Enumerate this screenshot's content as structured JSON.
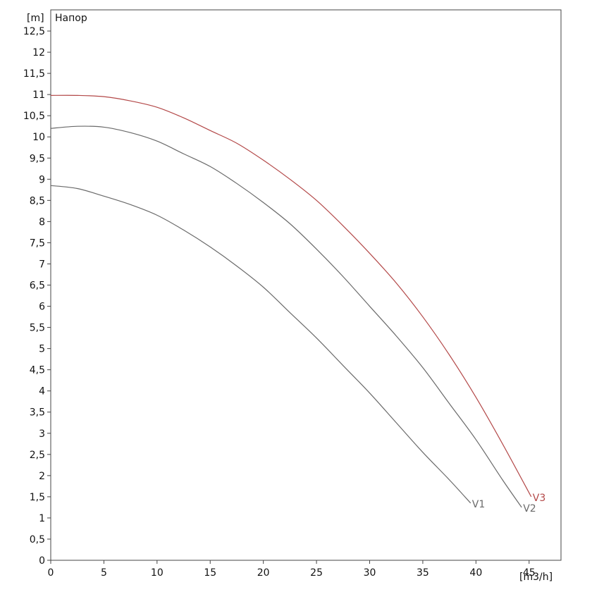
{
  "chart_data": {
    "type": "line",
    "title": "Напор",
    "xlabel": "[m3/h]",
    "ylabel": "[m]",
    "xlim": [
      0,
      48
    ],
    "ylim": [
      0,
      13
    ],
    "grid": true,
    "x_ticks": [
      0,
      5,
      10,
      15,
      20,
      25,
      30,
      35,
      40,
      45
    ],
    "x_tick_labels": [
      "0",
      "5",
      "10",
      "15",
      "20",
      "25",
      "30",
      "35",
      "40",
      "45"
    ],
    "y_ticks": [
      0,
      0.5,
      1,
      1.5,
      2,
      2.5,
      3,
      3.5,
      4,
      4.5,
      5,
      5.5,
      6,
      6.5,
      7,
      7.5,
      8,
      8.5,
      9,
      9.5,
      10,
      10.5,
      11,
      11.5,
      12,
      12.5
    ],
    "y_tick_labels": [
      "0",
      "0,5",
      "1",
      "1,5",
      "2",
      "2,5",
      "3",
      "3,5",
      "4",
      "4,5",
      "5",
      "5,5",
      "6",
      "6,5",
      "7",
      "7,5",
      "8",
      "8,5",
      "9",
      "9,5",
      "10",
      "10,5",
      "11",
      "11,5",
      "12",
      "12,5"
    ],
    "series": [
      {
        "name": "V1",
        "color": "#6a6a6a",
        "x": [
          0,
          2.5,
          5,
          7.5,
          10,
          12.5,
          15,
          17.5,
          20,
          22.5,
          25,
          27.5,
          30,
          32.5,
          35,
          37.5,
          39.5
        ],
        "y": [
          8.85,
          8.78,
          8.6,
          8.4,
          8.15,
          7.8,
          7.4,
          6.95,
          6.45,
          5.85,
          5.25,
          4.6,
          3.95,
          3.25,
          2.55,
          1.9,
          1.35
        ]
      },
      {
        "name": "V2",
        "color": "#6a6a6a",
        "x": [
          0,
          2.5,
          5,
          7.5,
          10,
          12.5,
          15,
          17.5,
          20,
          22.5,
          25,
          27.5,
          30,
          32.5,
          35,
          37.5,
          40,
          42.5,
          44.3
        ],
        "y": [
          10.2,
          10.25,
          10.23,
          10.1,
          9.9,
          9.6,
          9.3,
          8.9,
          8.45,
          7.95,
          7.35,
          6.7,
          6.0,
          5.3,
          4.55,
          3.7,
          2.85,
          1.9,
          1.25
        ]
      },
      {
        "name": "V3",
        "color": "#b34848",
        "x": [
          0,
          2.5,
          5,
          7.5,
          10,
          12.5,
          15,
          17.5,
          20,
          22.5,
          25,
          27.5,
          30,
          32.5,
          35,
          37.5,
          40,
          42.5,
          45.2
        ],
        "y": [
          10.98,
          10.98,
          10.95,
          10.85,
          10.7,
          10.45,
          10.15,
          9.85,
          9.45,
          9.0,
          8.5,
          7.9,
          7.25,
          6.55,
          5.75,
          4.85,
          3.85,
          2.75,
          1.5
        ]
      }
    ]
  }
}
